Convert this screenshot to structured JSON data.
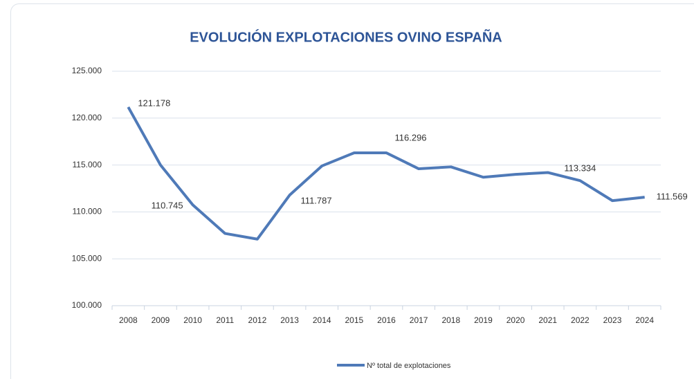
{
  "chart_data": {
    "type": "line",
    "title": "EVOLUCIÓN EXPLOTACIONES OVINO ESPAÑA",
    "categories": [
      "2008",
      "2009",
      "2010",
      "2011",
      "2012",
      "2013",
      "2014",
      "2015",
      "2016",
      "2017",
      "2018",
      "2019",
      "2020",
      "2021",
      "2022",
      "2023",
      "2024"
    ],
    "series": [
      {
        "name": "Nº total de explotaciones",
        "color": "#4f7ab8",
        "values": [
          121178,
          115000,
          110745,
          107700,
          107100,
          111787,
          114900,
          116300,
          116296,
          114600,
          114800,
          113700,
          114000,
          114200,
          113334,
          111200,
          111569
        ],
        "value_labels": [
          "121.178",
          null,
          "110.745",
          null,
          null,
          "111.787",
          null,
          null,
          "116.296",
          null,
          null,
          null,
          null,
          null,
          "113.334",
          null,
          "111.569"
        ]
      }
    ],
    "ylim": [
      100000,
      125000
    ],
    "yticks": [
      {
        "value": 100000,
        "label": "100.000"
      },
      {
        "value": 105000,
        "label": "105.000"
      },
      {
        "value": 110000,
        "label": "110.000"
      },
      {
        "value": 115000,
        "label": "115.000"
      },
      {
        "value": 120000,
        "label": "120.000"
      },
      {
        "value": 125000,
        "label": "125.000"
      }
    ],
    "grid": true,
    "legend": "bottom"
  }
}
